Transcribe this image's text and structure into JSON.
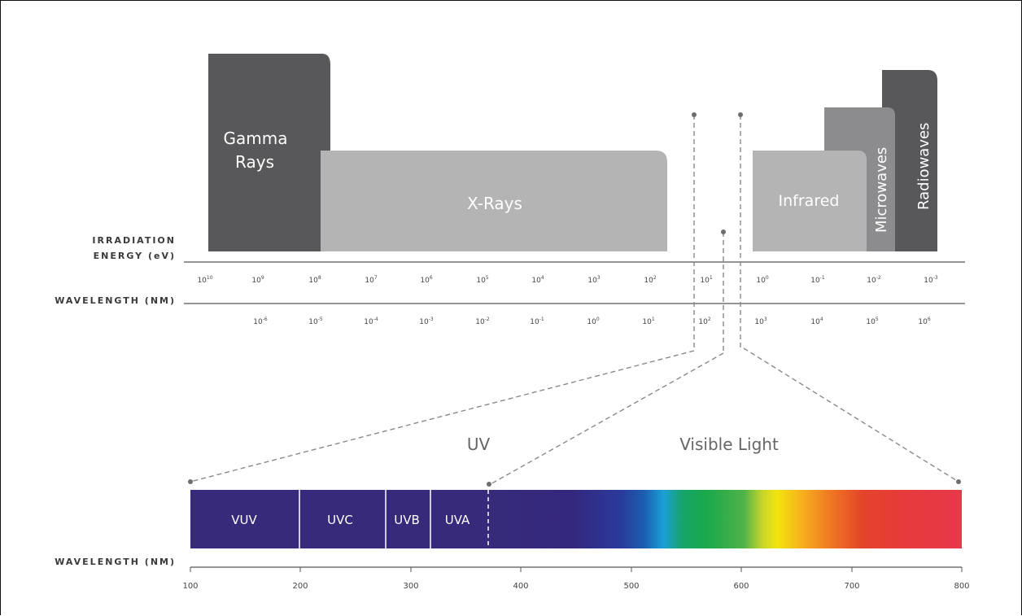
{
  "bands": {
    "gamma": {
      "line1": "Gamma",
      "line2": "Rays"
    },
    "xrays": "X-Rays",
    "infrared": "Infrared",
    "microwaves": "Microwaves",
    "radiowaves": "Radiowaves"
  },
  "axes": {
    "energy_label_line1": "IRRADIATION",
    "energy_label_line2": "ENERGY (eV)",
    "wavelength_label_top": "WAVELENGTH (NM)",
    "wavelength_label_bottom": "WAVELENGTH (NM)"
  },
  "energy_ticks": [
    {
      "base": "10",
      "exp": "10"
    },
    {
      "base": "10",
      "exp": "9"
    },
    {
      "base": "10",
      "exp": "8"
    },
    {
      "base": "10",
      "exp": "7"
    },
    {
      "base": "10",
      "exp": "6"
    },
    {
      "base": "10",
      "exp": "5"
    },
    {
      "base": "10",
      "exp": "4"
    },
    {
      "base": "10",
      "exp": "3"
    },
    {
      "base": "10",
      "exp": "2"
    },
    {
      "base": "10",
      "exp": "1"
    },
    {
      "base": "10",
      "exp": "0"
    },
    {
      "base": "10",
      "exp": "-1"
    },
    {
      "base": "10",
      "exp": "-2"
    },
    {
      "base": "10",
      "exp": "-3"
    }
  ],
  "wavelength_ticks": [
    {
      "base": "10",
      "exp": "-6"
    },
    {
      "base": "10",
      "exp": "-5"
    },
    {
      "base": "10",
      "exp": "-4"
    },
    {
      "base": "10",
      "exp": "-3"
    },
    {
      "base": "10",
      "exp": "-2"
    },
    {
      "base": "10",
      "exp": "-1"
    },
    {
      "base": "10",
      "exp": "0"
    },
    {
      "base": "10",
      "exp": "1"
    },
    {
      "base": "10",
      "exp": "2"
    },
    {
      "base": "10",
      "exp": "3"
    },
    {
      "base": "10",
      "exp": "4"
    },
    {
      "base": "10",
      "exp": "5"
    },
    {
      "base": "10",
      "exp": "6"
    }
  ],
  "regions": {
    "uv": "UV",
    "visible": "Visible Light"
  },
  "uv_bands": [
    "VUV",
    "UVC",
    "UVB",
    "UVA"
  ],
  "nm_ticks": [
    "100",
    "200",
    "300",
    "400",
    "500",
    "600",
    "700",
    "800"
  ],
  "colors": {
    "gamma": "#58585a",
    "xrays": "#b4b4b4",
    "infrared": "#b4b4b4",
    "microwaves": "#8c8c8e",
    "radiowaves": "#58585a",
    "uv_purple": "#372a7a"
  }
}
